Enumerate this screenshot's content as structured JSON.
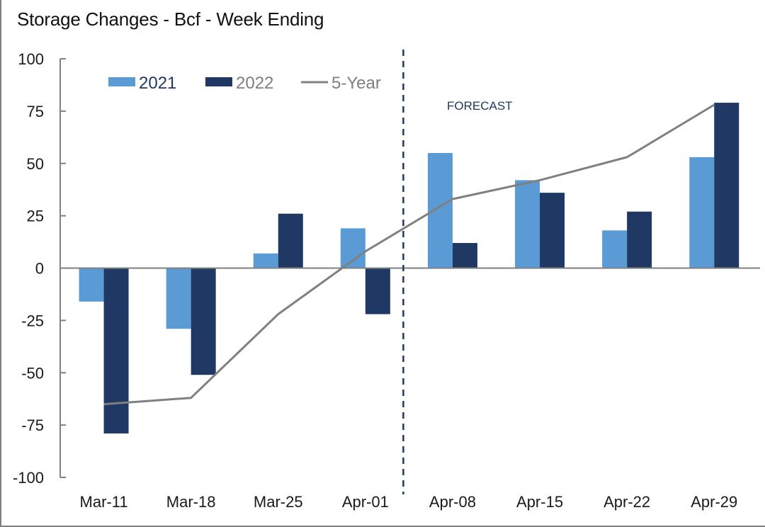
{
  "chart_data": {
    "type": "bar",
    "title": "Storage Changes - Bcf - Week Ending",
    "xlabel": "",
    "ylabel": "",
    "ylim": [
      -100,
      100
    ],
    "yticks": [
      100,
      75,
      50,
      25,
      0,
      -25,
      -50,
      -75,
      -100
    ],
    "ytick_labels": [
      "100",
      "75",
      "50",
      "25",
      "0",
      "-25",
      "-50",
      "-75",
      "-100"
    ],
    "grid": false,
    "legend_position": "top-left",
    "categories": [
      "Mar-11",
      "Mar-18",
      "Mar-25",
      "Apr-01",
      "Apr-08",
      "Apr-15",
      "Apr-22",
      "Apr-29"
    ],
    "series": [
      {
        "name": "2021",
        "kind": "bar",
        "color": "#5b9bd5",
        "legend_text_color": "#1f3864",
        "values": [
          -16,
          -29,
          7,
          19,
          55,
          42,
          18,
          53
        ]
      },
      {
        "name": "2022",
        "kind": "bar",
        "color": "#1f3864",
        "legend_text_color": "#7f7f7f",
        "values": [
          -79,
          -51,
          26,
          -22,
          12,
          36,
          27,
          79
        ]
      },
      {
        "name": "5-Year",
        "kind": "line",
        "color": "#808080",
        "legend_text_color": "#7f7f7f",
        "values": [
          -65,
          -62,
          -22,
          8,
          33,
          42,
          53,
          78
        ]
      }
    ],
    "annotations": [
      {
        "text": "FORECAST",
        "color": "#1f3864",
        "divider_between": [
          "Apr-01",
          "Apr-08"
        ],
        "divider_style": "dashed"
      }
    ]
  }
}
